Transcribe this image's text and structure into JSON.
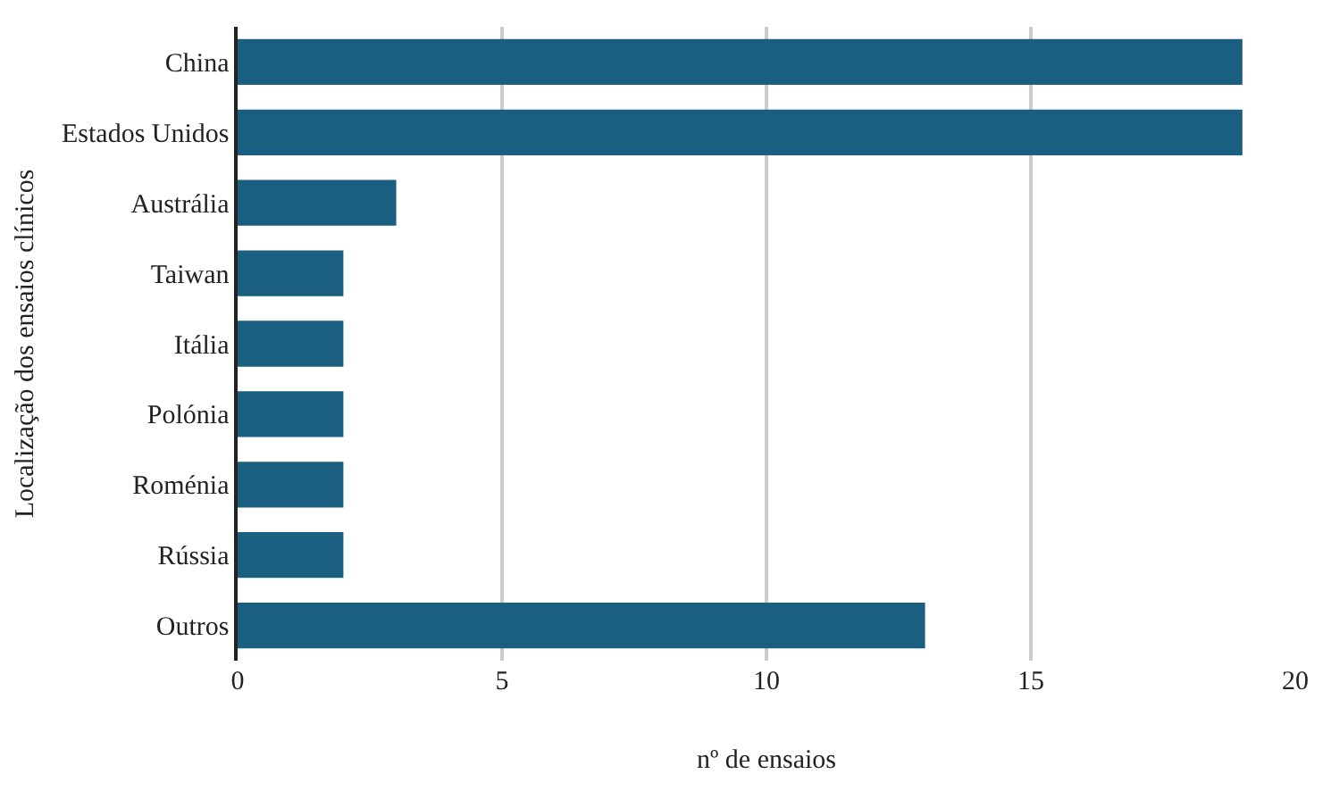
{
  "chart_data": {
    "type": "bar",
    "orientation": "horizontal",
    "xlabel": "nº de ensaios",
    "ylabel": "Localização dos ensaios clínicos",
    "categories": [
      "China",
      "Estados Unidos",
      "Austrália",
      "Taiwan",
      "Itália",
      "Polónia",
      "Roménia",
      "Rússia",
      "Outros"
    ],
    "values": [
      19,
      19,
      3,
      2,
      2,
      2,
      2,
      2,
      13
    ],
    "color": "#1a5f80",
    "xlim": [
      0,
      20
    ],
    "xticks": [
      0,
      5,
      10,
      15,
      20
    ],
    "grid": "x"
  }
}
